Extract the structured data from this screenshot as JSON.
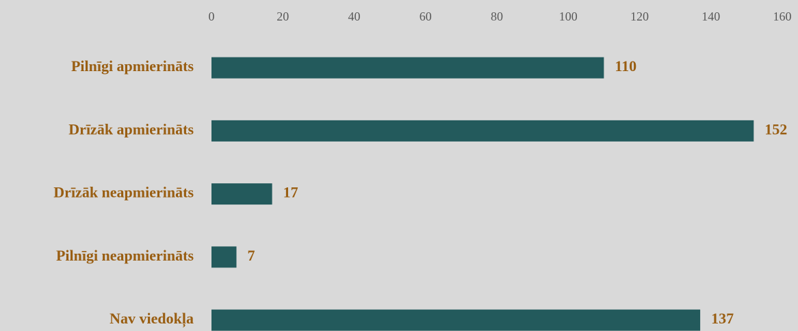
{
  "chart_data": {
    "type": "bar",
    "orientation": "horizontal",
    "categories": [
      "Pilnīgi apmierināts",
      "Drīzāk apmierināts",
      "Drīzāk neapmierināts",
      "Pilnīgi neapmierināts",
      "Nav viedokļa"
    ],
    "values": [
      110,
      152,
      17,
      7,
      137
    ],
    "color": "#235a5c",
    "xlim": [
      0,
      160
    ],
    "xticks": [
      0,
      20,
      40,
      60,
      80,
      100,
      120,
      140,
      160
    ],
    "grid": false
  }
}
